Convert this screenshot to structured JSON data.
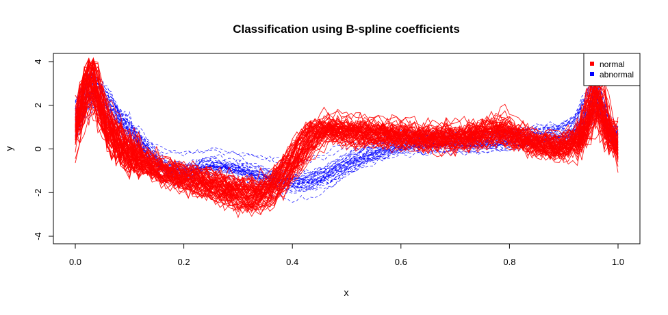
{
  "chart_data": {
    "type": "line",
    "title": "Classification using B-spline coefficients",
    "xlabel": "x",
    "ylabel": "y",
    "xlim": [
      0.0,
      1.0
    ],
    "ylim": [
      -4,
      4
    ],
    "x_ticks": [
      "0.0",
      "0.2",
      "0.4",
      "0.6",
      "0.8",
      "1.0"
    ],
    "y_ticks": [
      "-4",
      "-2",
      "0",
      "2",
      "4"
    ],
    "legend": {
      "position": "top-right",
      "entries": [
        {
          "label": "normal",
          "color": "#ff0000"
        },
        {
          "label": "abnormal",
          "color": "#0000ff"
        }
      ]
    },
    "series": [
      {
        "name": "normal",
        "color": "#ff0000",
        "line_style": "solid",
        "curve_count": 66,
        "x": [
          0.0,
          0.015,
          0.03,
          0.05,
          0.08,
          0.12,
          0.16,
          0.2,
          0.25,
          0.3,
          0.33,
          0.36,
          0.4,
          0.43,
          0.46,
          0.5,
          0.55,
          0.6,
          0.65,
          0.7,
          0.75,
          0.78,
          0.82,
          0.86,
          0.9,
          0.93,
          0.96,
          0.98,
          1.0
        ],
        "mean_curve": [
          0.8,
          2.2,
          3.3,
          1.4,
          0.2,
          -0.5,
          -0.9,
          -1.2,
          -1.5,
          -1.9,
          -2.0,
          -1.7,
          -0.5,
          0.6,
          0.9,
          0.8,
          0.7,
          0.6,
          0.5,
          0.5,
          0.7,
          0.9,
          0.5,
          0.2,
          0.1,
          0.5,
          2.4,
          0.8,
          0.2
        ]
      },
      {
        "name": "abnormal",
        "color": "#0000ff",
        "line_style": "dashed",
        "curve_count": 36,
        "x": [
          0.0,
          0.015,
          0.03,
          0.05,
          0.08,
          0.12,
          0.16,
          0.2,
          0.25,
          0.3,
          0.33,
          0.36,
          0.4,
          0.43,
          0.46,
          0.5,
          0.55,
          0.6,
          0.65,
          0.7,
          0.75,
          0.78,
          0.82,
          0.86,
          0.9,
          0.93,
          0.96,
          0.98,
          1.0
        ],
        "mean_curve": [
          1.2,
          2.2,
          2.8,
          2.3,
          1.4,
          0.3,
          -0.8,
          -1.0,
          -0.7,
          -0.9,
          -1.1,
          -1.3,
          -1.5,
          -1.4,
          -1.2,
          -0.6,
          -0.1,
          0.2,
          0.3,
          0.3,
          0.3,
          0.4,
          0.5,
          0.6,
          0.7,
          1.2,
          2.5,
          1.0,
          0.5
        ]
      }
    ]
  }
}
